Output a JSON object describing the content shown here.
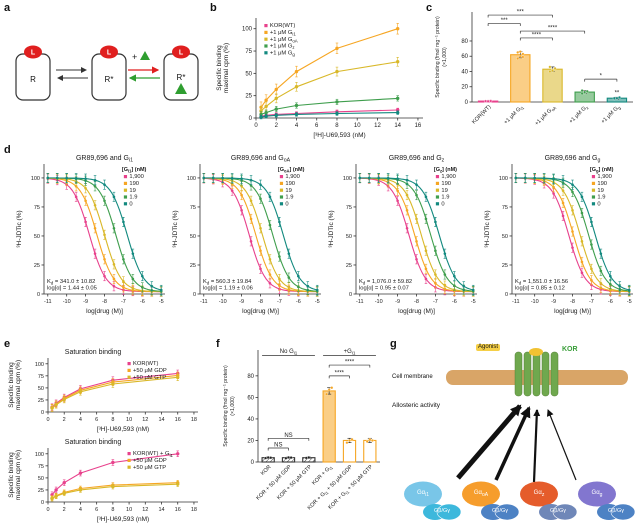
{
  "figure": {
    "panel_labels": {
      "a": "a",
      "b": "b",
      "c": "c",
      "d": "d",
      "e": "e",
      "f": "f",
      "g": "g"
    }
  },
  "palette": {
    "magenta": "#e8418c",
    "orange": "#f6a623",
    "yellow": "#d9b829",
    "green": "#3f9e4d",
    "teal": "#12897f",
    "red": "#e01f1f",
    "tri_green": "#2f9e30",
    "membrane": "#d9a567",
    "helix": "#6fa84e"
  },
  "panel_a": {
    "ligand": "L",
    "state1": "R",
    "state2": "R*",
    "state3": "R*",
    "plus": "+"
  },
  "panel_g": {
    "cell_membrane_label": "Cell membrane",
    "agonist_label": "Agonist",
    "receptor_label": "KOR",
    "allosteric_label": "Allosteric activity",
    "g_proteins": [
      {
        "alpha": "Gα{i1}",
        "alpha_color": "#79c6e8",
        "dimer": "Gβ/Gγ",
        "dimer_color": "#3db8dc"
      },
      {
        "alpha": "Gα{oA}",
        "alpha_color": "#f69d2c",
        "dimer": "Gβ/Gγ",
        "dimer_color": "#4d82c4"
      },
      {
        "alpha": "Gα{z}",
        "alpha_color": "#e55c2b",
        "dimer": "Gβ/Gγ",
        "dimer_color": "#6f87b8"
      },
      {
        "alpha": "Gα{g}",
        "alpha_color": "#8276cf",
        "dimer": "Gβ/Gγ",
        "dimer_color": "#4d82c4"
      }
    ]
  },
  "chart_data": [
    {
      "id": "b",
      "type": "line",
      "xlabel": "[³H]-U69,593 (nM)",
      "ylabel": "Specific binding\nmaximal cpm (%)",
      "xlim": [
        0,
        16.5
      ],
      "ylim": [
        0,
        112
      ],
      "xticks": [
        0,
        2,
        4,
        6,
        8,
        10,
        12,
        14,
        16
      ],
      "yticks": [
        0,
        25,
        50,
        75,
        100
      ],
      "m": {
        "l": 42,
        "r": 6,
        "t": 8,
        "b": 26
      },
      "x": [
        0.5,
        1,
        2,
        4,
        8,
        14
      ],
      "series": [
        {
          "name": "KOR(WT)",
          "color": "#e8418c",
          "y": [
            2,
            3,
            4,
            5,
            7,
            9
          ],
          "err": 2
        },
        {
          "name": "+1 μM G{i1}",
          "color": "#f6a623",
          "y": [
            12,
            20,
            32,
            52,
            78,
            100
          ],
          "err": 6
        },
        {
          "name": "+1 μM G{oA}",
          "color": "#d9b829",
          "y": [
            8,
            13,
            22,
            35,
            52,
            63
          ],
          "err": 5
        },
        {
          "name": "+1 μM G{z}",
          "color": "#3f9e4d",
          "y": [
            4,
            6,
            10,
            14,
            18,
            22
          ],
          "err": 3
        },
        {
          "name": "+1 μM G{g}",
          "color": "#12897f",
          "y": [
            1,
            2,
            3,
            4,
            5,
            6
          ],
          "err": 2
        }
      ],
      "legend": {
        "x": 0.05,
        "y": 0.02
      }
    },
    {
      "id": "c",
      "type": "bar",
      "ylabel": "Specific binding (fmol mg⁻¹ protein)\n(×1,000)",
      "ylabelFont": 5.2,
      "ylim": [
        0,
        118
      ],
      "yticks": [
        0,
        20,
        40,
        60,
        80
      ],
      "m": {
        "l": 40,
        "r": 4,
        "t": 6,
        "b": 44
      },
      "categories": [
        "KOR(WT)",
        "+1 μM G{i1}",
        "+1 μM G{oA}",
        "+1 μM G{z}",
        "+1 μM G{g}"
      ],
      "values": [
        1.2,
        62,
        43,
        13,
        5
      ],
      "errors": [
        0.5,
        4,
        3,
        2,
        1.2
      ],
      "colors": [
        "#e8418c",
        "#f6a623",
        "#d9b829",
        "#3f9e4d",
        "#12897f"
      ],
      "styles": [
        "fill",
        "fill",
        "fill",
        "fill",
        "fill"
      ],
      "points": [
        [
          1.0,
          1.3,
          1.5,
          1.1,
          0.9,
          1.2
        ],
        [
          57,
          60,
          63,
          65,
          66,
          59
        ],
        [
          40,
          42,
          44,
          46,
          41
        ],
        [
          11,
          12,
          14,
          15,
          13
        ],
        [
          4,
          5,
          6,
          5
        ]
      ],
      "brackets": [
        {
          "from": 0,
          "to": 1,
          "label": "***",
          "y": 103
        },
        {
          "from": 0,
          "to": 2,
          "label": "***",
          "y": 114
        },
        {
          "from": 1,
          "to": 2,
          "label": "****",
          "y": 84
        },
        {
          "from": 1,
          "to": 3,
          "label": "****",
          "y": 93
        },
        {
          "from": 3,
          "to": 4,
          "label": "*",
          "y": 30
        }
      ],
      "bar_annotations": [
        "",
        "",
        "",
        "",
        "**"
      ]
    },
    {
      "id": "d1",
      "type": "dose",
      "title": "GR89,696 and G{i1}",
      "xlabel": "log[drug (M)]",
      "ylabel": "³H-JDTic (%)",
      "xlim": [
        -11.2,
        -4.8
      ],
      "ylim": [
        0,
        112
      ],
      "xticks": [
        -11,
        -10,
        -9,
        -8,
        -7,
        -6,
        -5
      ],
      "yticks": [
        0,
        25,
        50,
        75,
        100
      ],
      "m": {
        "l": 30,
        "r": 2,
        "t": 14,
        "b": 38
      },
      "tickFont": 5.5,
      "top": 100,
      "bottom": 2,
      "legend_title": "[G{i1}] (nM)",
      "legend": {
        "x": 0.66,
        "y": 0.0
      },
      "note": "K{d} = 341.0 ± 10.82\nlog[α] = 1.44 ± 0.05",
      "series": [
        {
          "name": "1,900",
          "color": "#e8418c",
          "logIC50": -8.8,
          "err": 4
        },
        {
          "name": "190",
          "color": "#f6a623",
          "logIC50": -8.4,
          "err": 4
        },
        {
          "name": "19",
          "color": "#d9b829",
          "logIC50": -8.0,
          "err": 4
        },
        {
          "name": "1.9",
          "color": "#3f9e4d",
          "logIC50": -7.4,
          "err": 4
        },
        {
          "name": "0",
          "color": "#12897f",
          "logIC50": -6.8,
          "err": 4
        }
      ]
    },
    {
      "id": "d2",
      "type": "dose",
      "title": "GR89,696 and G{oA}",
      "xlabel": "log[drug (M)]",
      "ylabel": "³H-JDTic (%)",
      "xlim": [
        -11.2,
        -4.8
      ],
      "ylim": [
        0,
        112
      ],
      "xticks": [
        -11,
        -10,
        -9,
        -8,
        -7,
        -6,
        -5
      ],
      "yticks": [
        0,
        25,
        50,
        75,
        100
      ],
      "m": {
        "l": 30,
        "r": 2,
        "t": 14,
        "b": 38
      },
      "tickFont": 5.5,
      "top": 100,
      "bottom": 2,
      "legend_title": "[G{oA}] (nM)",
      "legend": {
        "x": 0.66,
        "y": 0.0
      },
      "note": "K{d} = 560.3 ± 19.84\nlog[α] = 1.19 ± 0.06",
      "series": [
        {
          "name": "1,900",
          "color": "#e8418c",
          "logIC50": -8.6,
          "err": 4
        },
        {
          "name": "190",
          "color": "#f6a623",
          "logIC50": -8.25,
          "err": 4
        },
        {
          "name": "19",
          "color": "#d9b829",
          "logIC50": -7.9,
          "err": 4
        },
        {
          "name": "1.9",
          "color": "#3f9e4d",
          "logIC50": -7.35,
          "err": 4
        },
        {
          "name": "0",
          "color": "#12897f",
          "logIC50": -6.8,
          "err": 4
        }
      ]
    },
    {
      "id": "d3",
      "type": "dose",
      "title": "GR89,696 and G{z}",
      "xlabel": "log[drug (M)]",
      "ylabel": "³H-JDTic (%)",
      "xlim": [
        -11.2,
        -4.8
      ],
      "ylim": [
        0,
        112
      ],
      "xticks": [
        -11,
        -10,
        -9,
        -8,
        -7,
        -6,
        -5
      ],
      "yticks": [
        0,
        25,
        50,
        75,
        100
      ],
      "m": {
        "l": 30,
        "r": 2,
        "t": 14,
        "b": 38
      },
      "tickFont": 5.5,
      "top": 100,
      "bottom": 2,
      "legend_title": "[G{z}] (nM)",
      "legend": {
        "x": 0.66,
        "y": 0.0
      },
      "note": "K{d} = 1,076.0 ± 59.82\nlog[α] = 0.95 ± 0.07",
      "series": [
        {
          "name": "1,900",
          "color": "#e8418c",
          "logIC50": -8.4,
          "err": 4
        },
        {
          "name": "190",
          "color": "#f6a623",
          "logIC50": -8.1,
          "err": 4
        },
        {
          "name": "19",
          "color": "#d9b829",
          "logIC50": -7.75,
          "err": 4
        },
        {
          "name": "1.9",
          "color": "#3f9e4d",
          "logIC50": -7.25,
          "err": 4
        },
        {
          "name": "0",
          "color": "#12897f",
          "logIC50": -6.8,
          "err": 4
        }
      ]
    },
    {
      "id": "d4",
      "type": "dose",
      "title": "GR89,696 and G{g}",
      "xlabel": "log[drug (M)]",
      "ylabel": "³H-JDTic (%)",
      "xlim": [
        -11.2,
        -4.8
      ],
      "ylim": [
        0,
        112
      ],
      "xticks": [
        -11,
        -10,
        -9,
        -8,
        -7,
        -6,
        -5
      ],
      "yticks": [
        0,
        25,
        50,
        75,
        100
      ],
      "m": {
        "l": 30,
        "r": 2,
        "t": 14,
        "b": 38
      },
      "tickFont": 5.5,
      "top": 100,
      "bottom": 2,
      "legend_title": "[G{g}] (nM)",
      "legend": {
        "x": 0.66,
        "y": 0.0
      },
      "note": "K{d} = 1,551.0 ± 16.56\nlog[α] = 0.85 ± 0.12",
      "series": [
        {
          "name": "1,900",
          "color": "#e8418c",
          "logIC50": -8.2,
          "err": 4
        },
        {
          "name": "190",
          "color": "#f6a623",
          "logIC50": -7.95,
          "err": 4
        },
        {
          "name": "19",
          "color": "#d9b829",
          "logIC50": -7.6,
          "err": 4
        },
        {
          "name": "1.9",
          "color": "#3f9e4d",
          "logIC50": -7.15,
          "err": 4
        },
        {
          "name": "0",
          "color": "#12897f",
          "logIC50": -6.8,
          "err": 4
        }
      ]
    },
    {
      "id": "e1",
      "type": "line",
      "title": "Saturation binding",
      "title_x": 0.3,
      "xlabel": "[³H]-U69,593 (nM)",
      "ylabel": "Specific binding\nmaximal cpm (%)",
      "xlim": [
        0,
        18.5
      ],
      "ylim": [
        0,
        112
      ],
      "xticks": [
        0,
        2,
        4,
        6,
        8,
        10,
        12,
        14,
        16,
        18
      ],
      "yticks": [
        0,
        25,
        50,
        75,
        100
      ],
      "m": {
        "l": 42,
        "r": 4,
        "t": 12,
        "b": 24
      },
      "tickFont": 5.5,
      "x": [
        0.5,
        1,
        2,
        4,
        8,
        16
      ],
      "series": [
        {
          "name": "KOR(WT)",
          "color": "#e8418c",
          "y": [
            10,
            18,
            30,
            48,
            66,
            80
          ],
          "err": 7
        },
        {
          "name": "+50 μM GDP",
          "color": "#f6a623",
          "y": [
            9,
            16,
            28,
            45,
            62,
            76
          ],
          "err": 7
        },
        {
          "name": "+50 μM GTP",
          "color": "#d9b829",
          "y": [
            8,
            15,
            26,
            42,
            58,
            72
          ],
          "err": 7
        }
      ],
      "legend": {
        "x": 0.53,
        "y": 0.0
      }
    },
    {
      "id": "e2",
      "type": "line",
      "title": "Saturation binding",
      "title_x": 0.3,
      "xlabel": "[³H]-U69,593 (nM)",
      "ylabel": "Specific binding\nmaximal cpm (%)",
      "xlim": [
        0,
        18.5
      ],
      "ylim": [
        0,
        112
      ],
      "xticks": [
        0,
        2,
        4,
        6,
        8,
        10,
        12,
        14,
        16,
        18
      ],
      "yticks": [
        0,
        25,
        50,
        75,
        100
      ],
      "m": {
        "l": 42,
        "r": 4,
        "t": 12,
        "b": 24
      },
      "tickFont": 5.5,
      "x": [
        0.5,
        1,
        2,
        4,
        8,
        16
      ],
      "series": [
        {
          "name": "KOR(WT) + G{i1}",
          "color": "#e8418c",
          "y": [
            15,
            25,
            40,
            60,
            82,
            100
          ],
          "err": 6
        },
        {
          "name": "+50 μM GDP",
          "color": "#f6a623",
          "y": [
            8,
            13,
            20,
            28,
            35,
            40
          ],
          "err": 5
        },
        {
          "name": "+50 μM GTP",
          "color": "#d9b829",
          "y": [
            7,
            12,
            18,
            25,
            32,
            37
          ],
          "err": 5
        }
      ],
      "legend": {
        "x": 0.53,
        "y": 0.0
      }
    },
    {
      "id": "f",
      "type": "bar",
      "ylabel": "Specific binding (fmol mg⁻¹ protein)\n(×1,000)",
      "ylabelFont": 5.2,
      "ylim": [
        0,
        104
      ],
      "yticks": [
        0,
        20,
        40,
        60,
        80
      ],
      "m": {
        "l": 38,
        "r": 2,
        "t": 8,
        "b": 64
      },
      "categories": [
        "KOR",
        "KOR + 50 μM GDP",
        "KOR + 50 μM GTP",
        "KOR + G{i1}",
        "KOR + G{i1} + 50 μM GDP",
        "KOR + G{i1} + 50 μM GTP"
      ],
      "values": [
        4,
        4,
        4,
        66,
        20,
        20
      ],
      "errors": [
        0.6,
        0.6,
        0.6,
        3,
        2,
        2
      ],
      "colors": [
        "#222222",
        "#222222",
        "#222222",
        "#f6a623",
        "#f6a623",
        "#f6a623"
      ],
      "styles": [
        "hatch",
        "hatch",
        "hatch",
        "fill",
        "outline",
        "outline"
      ],
      "points": [
        [
          3.6,
          4.2,
          4.0
        ],
        [
          3.5,
          4.3,
          4.1
        ],
        [
          3.8,
          4.2
        ],
        [
          63,
          67,
          69
        ],
        [
          18,
          20,
          21
        ],
        [
          19,
          21,
          20
        ]
      ],
      "brackets": [
        {
          "from": 0,
          "to": 1,
          "label": "NS",
          "y": 13
        },
        {
          "from": 0,
          "to": 2,
          "label": "NS",
          "y": 22
        },
        {
          "from": 3,
          "to": 4,
          "label": "****",
          "y": 80
        },
        {
          "from": 3,
          "to": 5,
          "label": "****",
          "y": 90
        }
      ],
      "group_labels": [
        {
          "from": 0,
          "to": 2,
          "label": "No G{i1}",
          "y": 99
        },
        {
          "from": 3,
          "to": 5,
          "label": "+G{i1}",
          "y": 99
        }
      ]
    }
  ]
}
